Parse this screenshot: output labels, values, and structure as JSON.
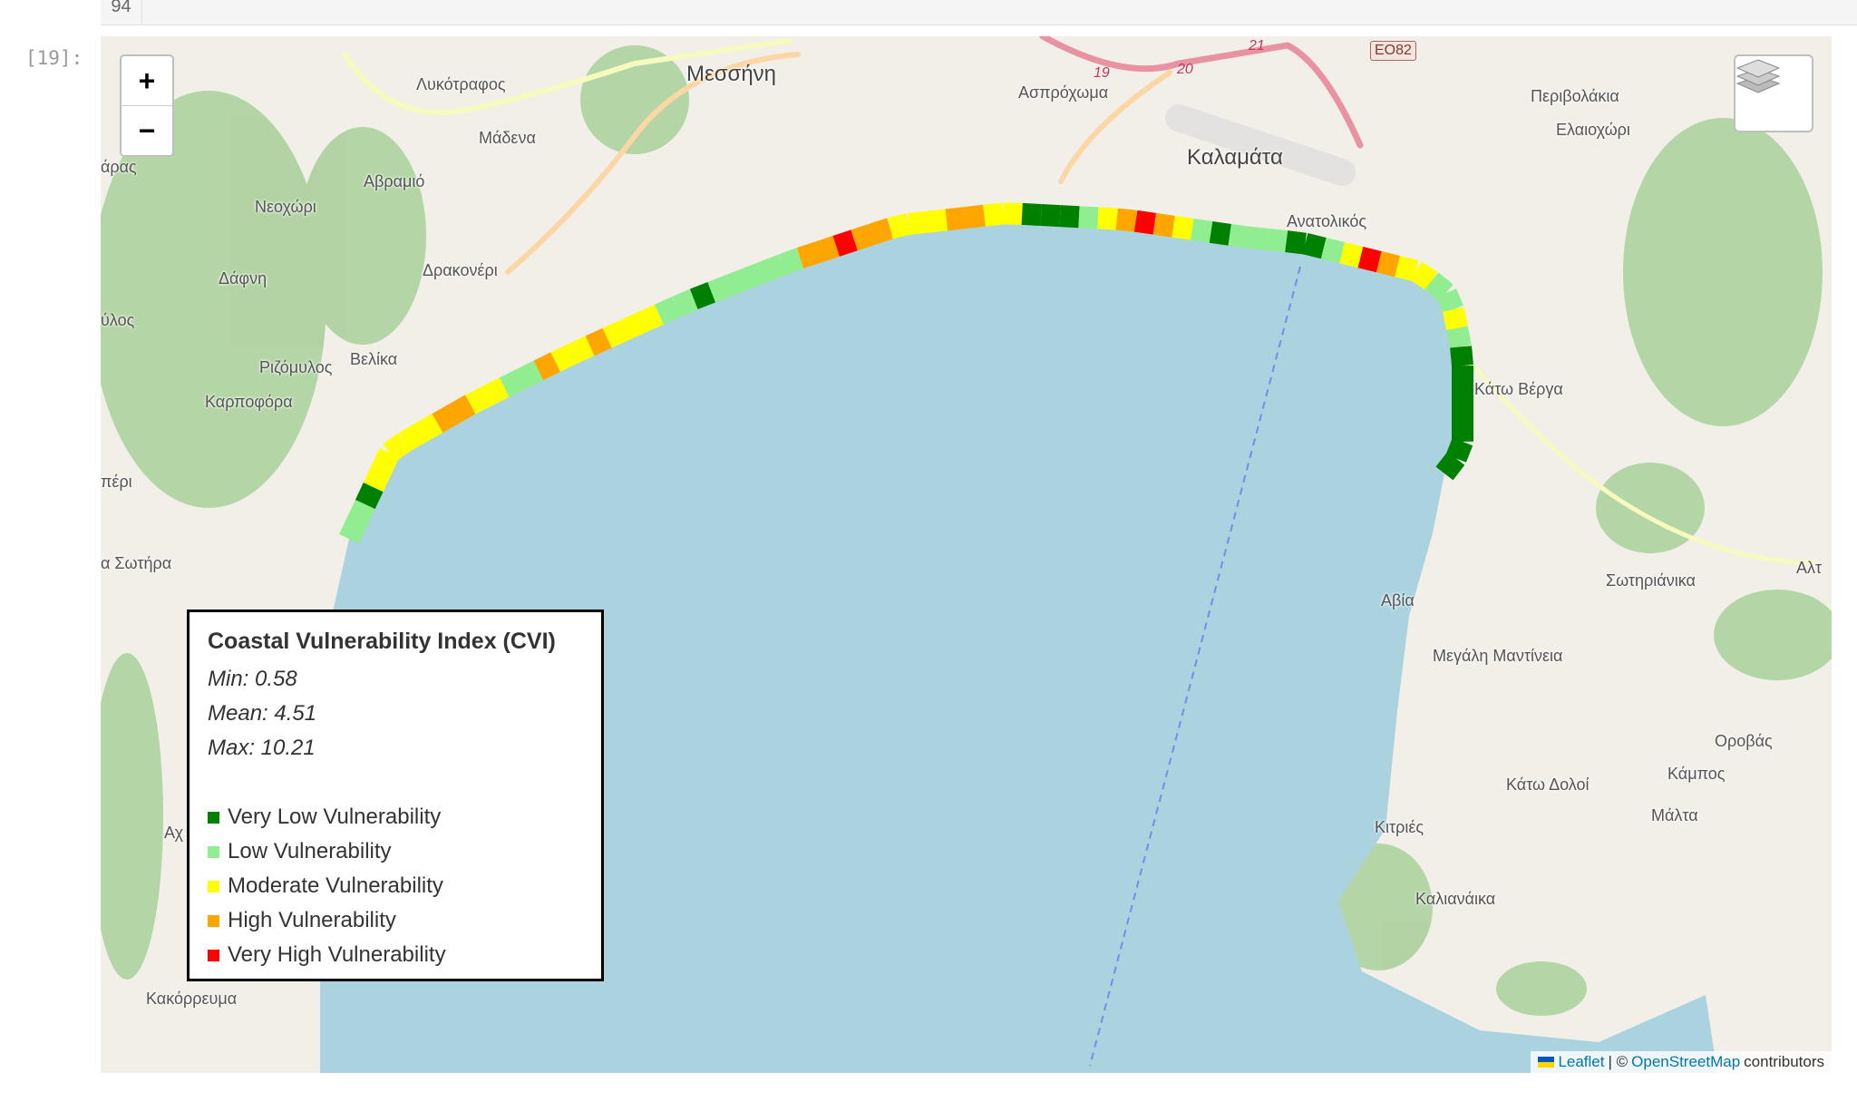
{
  "notebook": {
    "prev_line_number": "94",
    "prompt": "[19]:"
  },
  "map": {
    "zoom_in": "+",
    "zoom_out": "−",
    "layers_icon": "layers-icon",
    "sea_color": "#aad3df",
    "land_color": "#f2efe9",
    "places": [
      "Μεσσήνη",
      "Λυκότραφος",
      "Μάδενα",
      "Αβραμιό",
      "Νεοχώρι",
      "Δάφνη",
      "Δρακονέρι",
      "Ριζόμυλος",
      "Βελίκα",
      "Καρποφόρα",
      "ύλος",
      "άρας",
      "πέρι",
      "α Σωτήρα",
      "Αχ",
      "Κακόρρευμα",
      "Ασπρόχωμα",
      "Καλαμάτα",
      "Ανατολικός",
      "Περιβολάκια",
      "Ελαιοχώρι",
      "Κάτω Βέργα",
      "Αλτ",
      "Σωτηριάνικα",
      "Αβία",
      "Μεγάλη Μαντίνεια",
      "Οροβάς",
      "Κάμπος",
      "Κάτω Δολοί",
      "Μάλτα",
      "Κιτριές",
      "Καλιανάικα"
    ],
    "road_shield": "ΕΟ82",
    "road_numbers": [
      "19",
      "20",
      "21"
    ],
    "coast_segments": [
      1,
      1,
      0,
      2,
      2,
      2,
      2,
      2,
      3,
      3,
      2,
      2,
      1,
      1,
      3,
      2,
      2,
      3,
      2,
      2,
      2,
      1,
      1,
      0,
      1,
      1,
      1,
      1,
      1,
      3,
      3,
      4,
      3,
      3,
      2,
      2,
      2,
      3,
      3,
      2,
      2,
      0,
      0,
      0,
      1,
      2,
      3,
      4,
      3,
      2,
      1,
      0,
      1,
      1,
      1,
      0,
      0,
      1,
      2,
      4,
      3,
      2,
      2,
      1,
      1,
      2,
      1,
      0,
      0,
      0,
      0,
      0,
      0,
      0
    ]
  },
  "legend": {
    "title": "Coastal Vulnerability Index (CVI)",
    "min": "Min: 0.58",
    "mean": "Mean: 4.51",
    "max": "Max: 10.21",
    "items": [
      {
        "label": "Very Low Vulnerability",
        "color": "#008000"
      },
      {
        "label": "Low Vulnerability",
        "color": "#90ee90"
      },
      {
        "label": "Moderate Vulnerability",
        "color": "#ffff00"
      },
      {
        "label": "High Vulnerability",
        "color": "#ffa500"
      },
      {
        "label": "Very High Vulnerability",
        "color": "#ff0000"
      }
    ]
  },
  "attribution": {
    "leaflet": "Leaflet",
    "sep": "| ©",
    "osm": "OpenStreetMap",
    "contributors": "contributors"
  }
}
